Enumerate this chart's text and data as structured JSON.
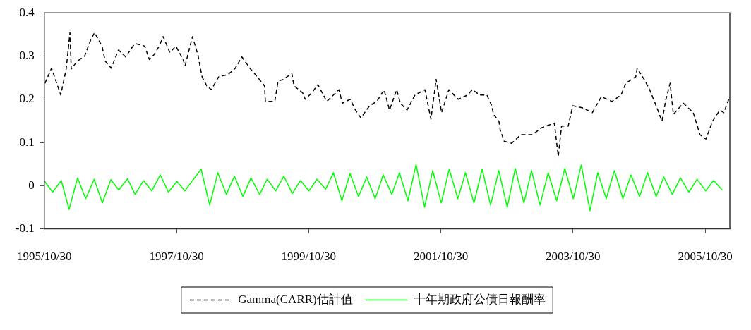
{
  "chart_data": {
    "type": "line",
    "xlim": [
      "1995-10-30",
      "2006-03-15"
    ],
    "ylim": [
      -0.1,
      0.4
    ],
    "xticks": [
      {
        "value": "1995-10-30",
        "label": "1995/10/30"
      },
      {
        "value": "1997-10-30",
        "label": "1997/10/30"
      },
      {
        "value": "1999-10-30",
        "label": "1999/10/30"
      },
      {
        "value": "2001-10-30",
        "label": "2001/10/30"
      },
      {
        "value": "2003-10-30",
        "label": "2003/10/30"
      },
      {
        "value": "2005-10-30",
        "label": "2005/10/30"
      }
    ],
    "yticks": [
      -0.1,
      0,
      0.1,
      0.2,
      0.3,
      0.4
    ],
    "grid": false,
    "legend": "bottom",
    "marker": "none",
    "series": [
      {
        "name": "Gamma(CARR)估計值",
        "color": "#000000",
        "line_style": "dashed",
        "x": [
          "1995-11-03",
          "1995-12-09",
          "1996-01-29",
          "1996-02-28",
          "1996-03-20",
          "1996-03-27",
          "1996-04-29",
          "1996-06-09",
          "1996-07-15",
          "1996-08-03",
          "1996-09-13",
          "1996-10-01",
          "1996-11-03",
          "1996-12-13",
          "1997-01-22",
          "1997-03-13",
          "1997-05-07",
          "1997-06-02",
          "1997-06-27",
          "1997-07-26",
          "1997-08-17",
          "1997-09-23",
          "1997-10-26",
          "1997-12-05",
          "1997-12-16",
          "1998-01-26",
          "1998-02-25",
          "1998-03-20",
          "1998-04-15",
          "1998-05-10",
          "1998-06-20",
          "1998-08-10",
          "1998-09-20",
          "1998-10-26",
          "1998-12-09",
          "1999-01-19",
          "1999-02-28",
          "1999-03-05",
          "1999-04-26",
          "1999-05-14",
          "1999-06-13",
          "1999-07-29",
          "1999-08-10",
          "1999-09-27",
          "1999-10-11",
          "1999-11-17",
          "1999-12-20",
          "2000-02-07",
          "2000-04-15",
          "2000-05-03",
          "2000-06-16",
          "2000-07-15",
          "2000-08-14",
          "2000-10-01",
          "2000-11-10",
          "2000-12-20",
          "2001-01-19",
          "2001-02-28",
          "2001-03-20",
          "2001-04-26",
          "2001-06-09",
          "2001-08-03",
          "2001-09-05",
          "2001-10-04",
          "2001-11-03",
          "2001-12-13",
          "2002-02-03",
          "2002-03-27",
          "2002-04-22",
          "2002-06-02",
          "2002-07-11",
          "2002-08-07",
          "2002-08-17",
          "2002-09-16",
          "2002-09-23",
          "2002-10-15",
          "2002-11-25",
          "2003-01-15",
          "2003-03-20",
          "2003-05-10",
          "2003-07-19",
          "2003-08-10",
          "2003-08-28",
          "2003-10-04",
          "2003-10-29",
          "2003-12-23",
          "2004-02-14",
          "2004-04-04",
          "2004-06-02",
          "2004-07-22",
          "2004-08-17",
          "2004-10-11",
          "2004-10-19",
          "2004-12-02",
          "2004-12-27",
          "2005-01-26",
          "2005-03-05",
          "2005-03-27",
          "2005-04-19",
          "2005-05-07",
          "2005-07-01",
          "2005-08-25",
          "2005-10-01",
          "2005-11-03",
          "2005-12-09",
          "2006-01-19",
          "2006-02-10",
          "2006-03-09"
        ],
        "values": [
          0.237,
          0.272,
          0.21,
          0.27,
          0.354,
          0.27,
          0.288,
          0.3,
          0.34,
          0.354,
          0.323,
          0.288,
          0.272,
          0.314,
          0.298,
          0.329,
          0.323,
          0.292,
          0.303,
          0.323,
          0.345,
          0.308,
          0.323,
          0.292,
          0.277,
          0.345,
          0.303,
          0.252,
          0.231,
          0.222,
          0.252,
          0.257,
          0.272,
          0.298,
          0.272,
          0.252,
          0.231,
          0.195,
          0.195,
          0.242,
          0.246,
          0.26,
          0.231,
          0.215,
          0.2,
          0.215,
          0.234,
          0.195,
          0.222,
          0.191,
          0.2,
          0.175,
          0.157,
          0.185,
          0.195,
          0.222,
          0.175,
          0.222,
          0.191,
          0.175,
          0.21,
          0.222,
          0.154,
          0.246,
          0.169,
          0.222,
          0.2,
          0.21,
          0.222,
          0.21,
          0.21,
          0.185,
          0.165,
          0.149,
          0.129,
          0.103,
          0.098,
          0.118,
          0.118,
          0.134,
          0.145,
          0.068,
          0.138,
          0.138,
          0.185,
          0.18,
          0.169,
          0.206,
          0.195,
          0.21,
          0.237,
          0.252,
          0.272,
          0.242,
          0.222,
          0.191,
          0.149,
          0.2,
          0.237,
          0.165,
          0.191,
          0.169,
          0.118,
          0.108,
          0.149,
          0.175,
          0.169,
          0.2
        ]
      },
      {
        "name": "十年期政府公債日報酬率",
        "color": "#00ff00",
        "line_style": "solid",
        "x": [
          "1995-11-01",
          "1995-12-15",
          "1996-02-01",
          "1996-03-15",
          "1996-05-01",
          "1996-06-15",
          "1996-08-01",
          "1996-09-15",
          "1996-11-01",
          "1996-12-15",
          "1997-02-01",
          "1997-03-15",
          "1997-05-01",
          "1997-06-15",
          "1997-08-01",
          "1997-09-15",
          "1997-11-01",
          "1997-12-15",
          "1998-02-01",
          "1998-03-15",
          "1998-05-01",
          "1998-06-15",
          "1998-08-01",
          "1998-09-15",
          "1998-11-01",
          "1998-12-15",
          "1999-02-01",
          "1999-03-15",
          "1999-05-01",
          "1999-06-15",
          "1999-08-01",
          "1999-09-15",
          "1999-11-01",
          "1999-12-15",
          "2000-02-01",
          "2000-03-15",
          "2000-05-01",
          "2000-06-15",
          "2000-08-01",
          "2000-09-15",
          "2000-11-01",
          "2000-12-15",
          "2001-02-01",
          "2001-03-15",
          "2001-05-01",
          "2001-06-15",
          "2001-08-01",
          "2001-09-15",
          "2001-11-01",
          "2001-12-15",
          "2002-02-01",
          "2002-03-15",
          "2002-05-01",
          "2002-06-15",
          "2002-08-01",
          "2002-09-15",
          "2002-11-01",
          "2002-12-15",
          "2003-02-01",
          "2003-03-15",
          "2003-05-01",
          "2003-06-15",
          "2003-08-01",
          "2003-09-15",
          "2003-11-01",
          "2003-12-15",
          "2004-02-01",
          "2004-03-15",
          "2004-05-01",
          "2004-06-15",
          "2004-08-01",
          "2004-09-15",
          "2004-11-01",
          "2004-12-15",
          "2005-02-01",
          "2005-03-15",
          "2005-05-01",
          "2005-06-15",
          "2005-08-01",
          "2005-09-15",
          "2005-11-01",
          "2005-12-15",
          "2006-02-01"
        ],
        "values": [
          0.01,
          -0.015,
          0.012,
          -0.055,
          0.018,
          -0.03,
          0.015,
          -0.04,
          0.014,
          -0.01,
          0.016,
          -0.02,
          0.012,
          -0.012,
          0.025,
          -0.015,
          0.01,
          -0.012,
          0.015,
          0.038,
          -0.045,
          0.03,
          -0.02,
          0.022,
          -0.025,
          0.018,
          -0.02,
          0.015,
          -0.012,
          0.022,
          -0.018,
          0.012,
          -0.012,
          0.015,
          -0.008,
          0.03,
          -0.035,
          0.028,
          -0.025,
          0.02,
          -0.03,
          0.025,
          -0.02,
          0.03,
          -0.035,
          0.049,
          -0.05,
          0.035,
          -0.04,
          0.038,
          -0.03,
          0.03,
          -0.04,
          0.038,
          -0.045,
          0.035,
          -0.05,
          0.04,
          -0.04,
          0.035,
          -0.045,
          0.03,
          -0.035,
          0.04,
          -0.03,
          0.048,
          -0.058,
          0.03,
          -0.03,
          0.035,
          -0.03,
          0.025,
          -0.025,
          0.03,
          -0.025,
          0.02,
          -0.02,
          0.018,
          -0.015,
          0.015,
          -0.012,
          0.012,
          -0.01
        ]
      }
    ]
  }
}
